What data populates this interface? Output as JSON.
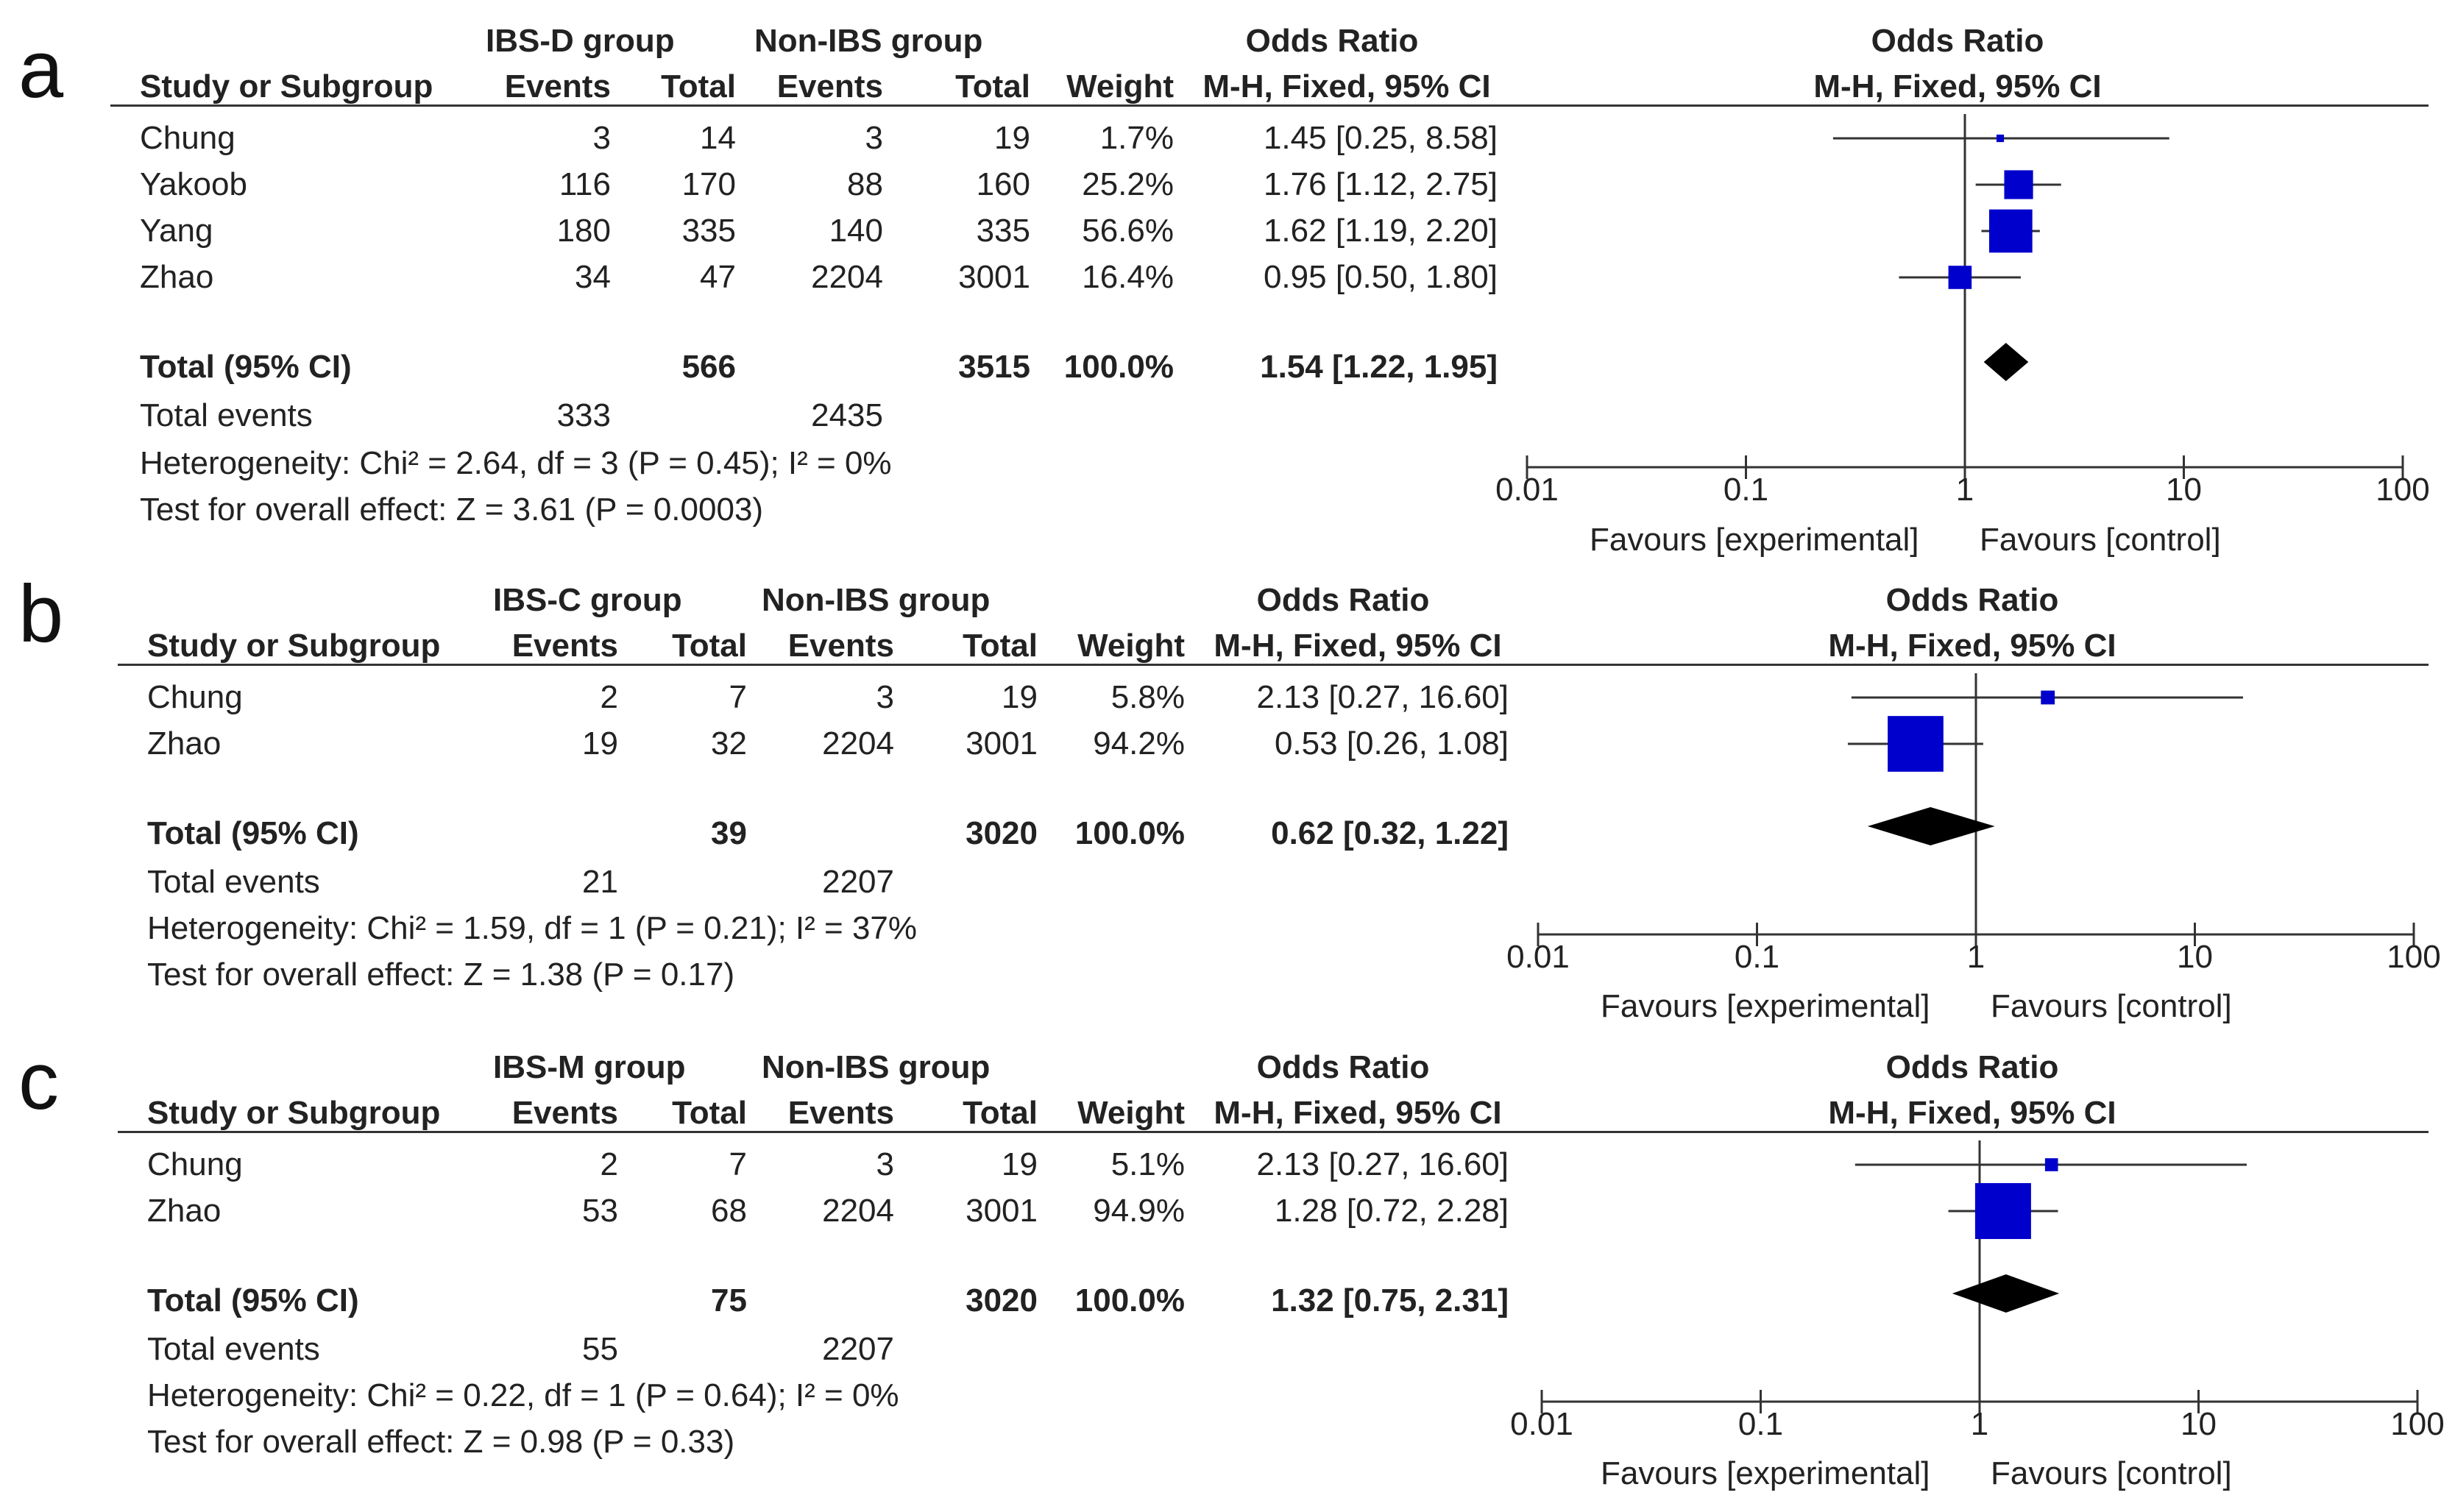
{
  "chart_data": [
    {
      "type": "forest",
      "panel_label": "a",
      "group_label": "IBS-D group",
      "control_label": "Non-IBS group",
      "headers": {
        "study": "Study or Subgroup",
        "events": "Events",
        "total": "Total",
        "weight": "Weight",
        "or_title": "Odds Ratio",
        "or_method": "M-H, Fixed, 95% CI"
      },
      "studies": [
        {
          "name": "Chung",
          "events_exp": "3",
          "total_exp": "14",
          "events_ctl": "3",
          "total_ctl": "19",
          "weight": "1.7%",
          "ci_text": "1.45 [0.25, 8.58]",
          "or": 1.45,
          "lower": 0.25,
          "upper": 8.58,
          "w": 1.7
        },
        {
          "name": "Yakoob",
          "events_exp": "116",
          "total_exp": "170",
          "events_ctl": "88",
          "total_ctl": "160",
          "weight": "25.2%",
          "ci_text": "1.76 [1.12, 2.75]",
          "or": 1.76,
          "lower": 1.12,
          "upper": 2.75,
          "w": 25.2
        },
        {
          "name": "Yang",
          "events_exp": "180",
          "total_exp": "335",
          "events_ctl": "140",
          "total_ctl": "335",
          "weight": "56.6%",
          "ci_text": "1.62 [1.19, 2.20]",
          "or": 1.62,
          "lower": 1.19,
          "upper": 2.2,
          "w": 56.6
        },
        {
          "name": "Zhao",
          "events_exp": "34",
          "total_exp": "47",
          "events_ctl": "2204",
          "total_ctl": "3001",
          "weight": "16.4%",
          "ci_text": "0.95 [0.50, 1.80]",
          "or": 0.95,
          "lower": 0.5,
          "upper": 1.8,
          "w": 16.4
        }
      ],
      "total": {
        "label": "Total (95% CI)",
        "total_exp": "566",
        "total_ctl": "3515",
        "weight": "100.0%",
        "ci_text": "1.54 [1.22, 1.95]",
        "or": 1.54,
        "lower": 1.22,
        "upper": 1.95
      },
      "total_events": {
        "label": "Total events",
        "exp": "333",
        "ctl": "2435"
      },
      "heterogeneity": "Heterogeneity: Chi² = 2.64, df = 3 (P = 0.45); I² = 0%",
      "overall_effect": "Test for overall effect: Z = 3.61 (P = 0.0003)",
      "axis": {
        "scale": "log",
        "ticks": [
          0.01,
          0.1,
          1,
          10,
          100
        ],
        "tick_labels": [
          "0.01",
          "0.1",
          "1",
          "10",
          "100"
        ],
        "xlim": [
          0.01,
          100
        ]
      },
      "favours_left": "Favours [experimental]",
      "favours_right": "Favours [control]"
    },
    {
      "type": "forest",
      "panel_label": "b",
      "group_label": "IBS-C group",
      "control_label": "Non-IBS group",
      "headers": {
        "study": "Study or Subgroup",
        "events": "Events",
        "total": "Total",
        "weight": "Weight",
        "or_title": "Odds Ratio",
        "or_method": "M-H, Fixed, 95% CI"
      },
      "studies": [
        {
          "name": "Chung",
          "events_exp": "2",
          "total_exp": "7",
          "events_ctl": "3",
          "total_ctl": "19",
          "weight": "5.8%",
          "ci_text": "2.13 [0.27, 16.60]",
          "or": 2.13,
          "lower": 0.27,
          "upper": 16.6,
          "w": 5.8
        },
        {
          "name": "Zhao",
          "events_exp": "19",
          "total_exp": "32",
          "events_ctl": "2204",
          "total_ctl": "3001",
          "weight": "94.2%",
          "ci_text": "0.53 [0.26, 1.08]",
          "or": 0.53,
          "lower": 0.26,
          "upper": 1.08,
          "w": 94.2
        }
      ],
      "total": {
        "label": "Total (95% CI)",
        "total_exp": "39",
        "total_ctl": "3020",
        "weight": "100.0%",
        "ci_text": "0.62 [0.32, 1.22]",
        "or": 0.62,
        "lower": 0.32,
        "upper": 1.22
      },
      "total_events": {
        "label": "Total events",
        "exp": "21",
        "ctl": "2207"
      },
      "heterogeneity": "Heterogeneity: Chi² = 1.59, df = 1 (P = 0.21); I² = 37%",
      "overall_effect": "Test for overall effect: Z = 1.38 (P = 0.17)",
      "axis": {
        "scale": "log",
        "ticks": [
          0.01,
          0.1,
          1,
          10,
          100
        ],
        "tick_labels": [
          "0.01",
          "0.1",
          "1",
          "10",
          "100"
        ],
        "xlim": [
          0.01,
          100
        ]
      },
      "favours_left": "Favours [experimental]",
      "favours_right": "Favours [control]"
    },
    {
      "type": "forest",
      "panel_label": "c",
      "group_label": "IBS-M group",
      "control_label": "Non-IBS group",
      "headers": {
        "study": "Study or Subgroup",
        "events": "Events",
        "total": "Total",
        "weight": "Weight",
        "or_title": "Odds Ratio",
        "or_method": "M-H, Fixed, 95% CI"
      },
      "studies": [
        {
          "name": "Chung",
          "events_exp": "2",
          "total_exp": "7",
          "events_ctl": "3",
          "total_ctl": "19",
          "weight": "5.1%",
          "ci_text": "2.13 [0.27, 16.60]",
          "or": 2.13,
          "lower": 0.27,
          "upper": 16.6,
          "w": 5.1
        },
        {
          "name": "Zhao",
          "events_exp": "53",
          "total_exp": "68",
          "events_ctl": "2204",
          "total_ctl": "3001",
          "weight": "94.9%",
          "ci_text": "1.28 [0.72, 2.28]",
          "or": 1.28,
          "lower": 0.72,
          "upper": 2.28,
          "w": 94.9
        }
      ],
      "total": {
        "label": "Total (95% CI)",
        "total_exp": "75",
        "total_ctl": "3020",
        "weight": "100.0%",
        "ci_text": "1.32 [0.75, 2.31]",
        "or": 1.32,
        "lower": 0.75,
        "upper": 2.31
      },
      "total_events": {
        "label": "Total events",
        "exp": "55",
        "ctl": "2207"
      },
      "heterogeneity": "Heterogeneity: Chi² = 0.22, df = 1 (P = 0.64); I² = 0%",
      "overall_effect": "Test for overall effect: Z = 0.98 (P = 0.33)",
      "axis": {
        "scale": "log",
        "ticks": [
          0.01,
          0.1,
          1,
          10,
          100
        ],
        "tick_labels": [
          "0.01",
          "0.1",
          "1",
          "10",
          "100"
        ],
        "xlim": [
          0.01,
          100
        ]
      },
      "favours_left": "Favours [experimental]",
      "favours_right": "Favours [control]"
    }
  ],
  "colors": {
    "marker": "#0000cc",
    "diamond": "#000000",
    "line": "#333333"
  }
}
